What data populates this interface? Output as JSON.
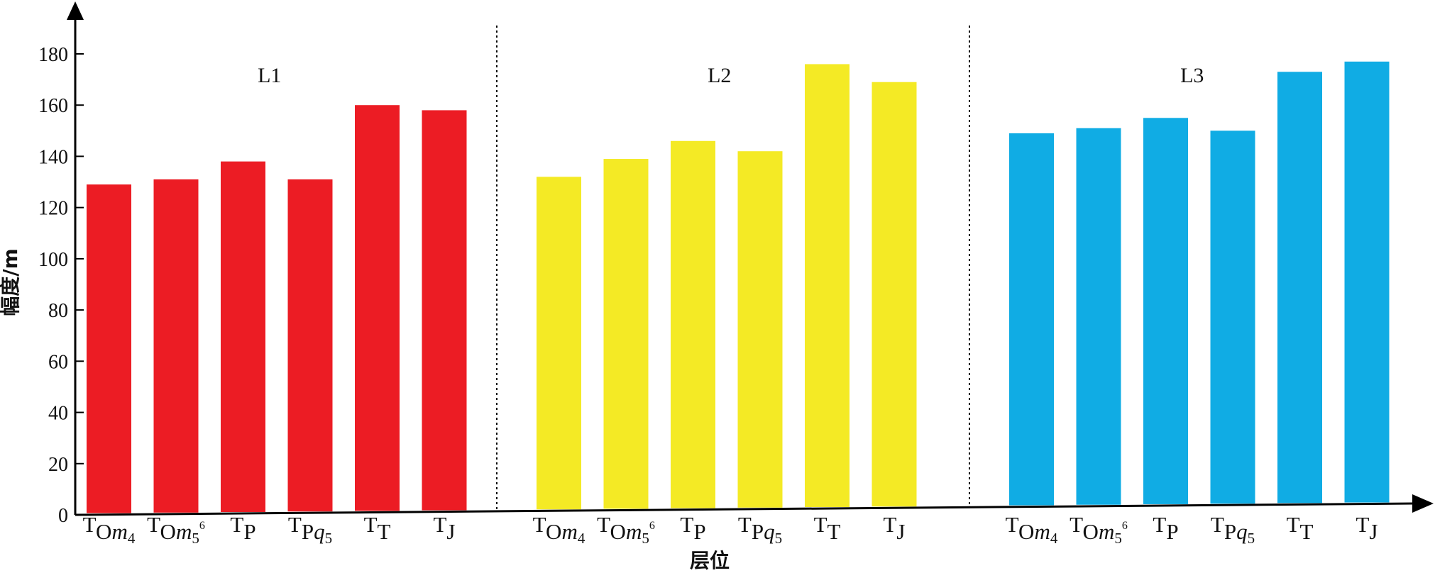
{
  "chart_data": {
    "type": "bar",
    "title": "",
    "xlabel": "层位",
    "ylabel": "幅度/m",
    "ylim": [
      0,
      190
    ],
    "yticks": [
      0,
      20,
      40,
      60,
      80,
      100,
      120,
      140,
      160,
      180
    ],
    "grid": false,
    "categories": [
      "TOm4",
      "TOm5⁶",
      "TP",
      "TPq5",
      "TT",
      "TJ"
    ],
    "groups": [
      {
        "name": "L1",
        "color": "#ec1c24",
        "values": [
          129,
          131,
          138,
          131,
          160,
          158
        ]
      },
      {
        "name": "L2",
        "color": "#f4ea25",
        "values": [
          132,
          139,
          146,
          142,
          176,
          169
        ]
      },
      {
        "name": "L3",
        "color": "#10ace4",
        "values": [
          149,
          151,
          155,
          150,
          173,
          177
        ]
      }
    ]
  }
}
